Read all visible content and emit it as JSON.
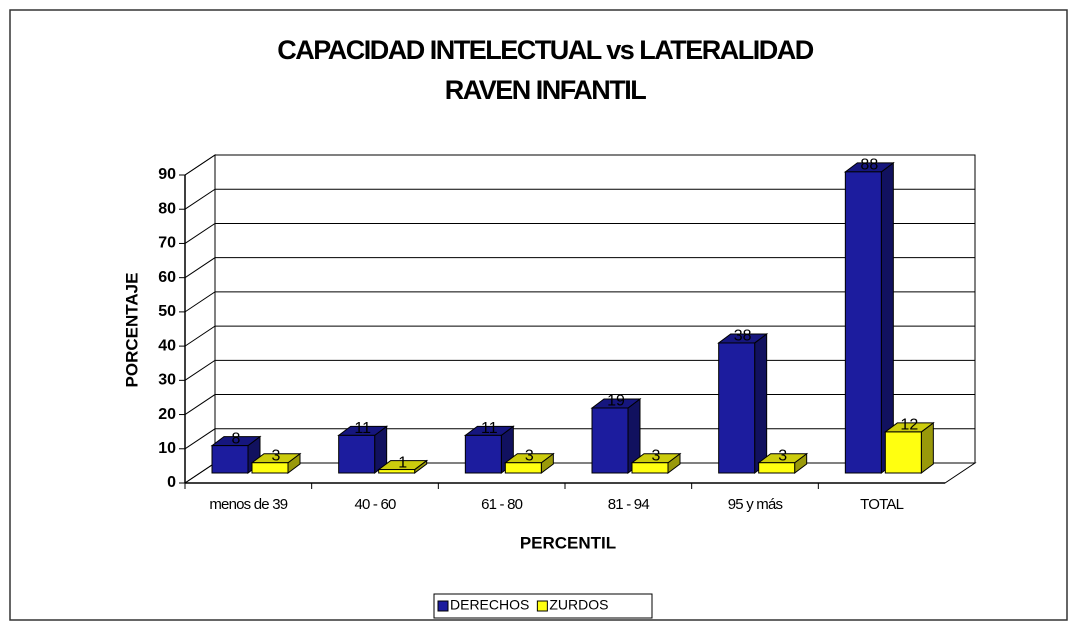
{
  "chart_data": {
    "type": "bar3d",
    "title": "CAPACIDAD INTELECTUAL vs LATERALIDAD",
    "subtitle": "RAVEN INFANTIL",
    "x_label": "PERCENTIL",
    "y_label": "PORCENTAJE",
    "categories": [
      "menos de 39",
      "40 - 60",
      "61 - 80",
      "81 - 94",
      "95 y más",
      "TOTAL"
    ],
    "series": [
      {
        "name": "DERECHOS",
        "color": "#1c1c9e",
        "values": [
          8,
          11,
          11,
          19,
          38,
          88
        ]
      },
      {
        "name": "ZURDOS",
        "color": "#ffff10",
        "values": [
          3,
          1,
          3,
          3,
          3,
          12
        ]
      }
    ],
    "ylim": [
      0,
      90
    ],
    "yticks": [
      0,
      10,
      20,
      30,
      40,
      50,
      60,
      70,
      80,
      90
    ],
    "grid": true,
    "legend": "bottom"
  }
}
